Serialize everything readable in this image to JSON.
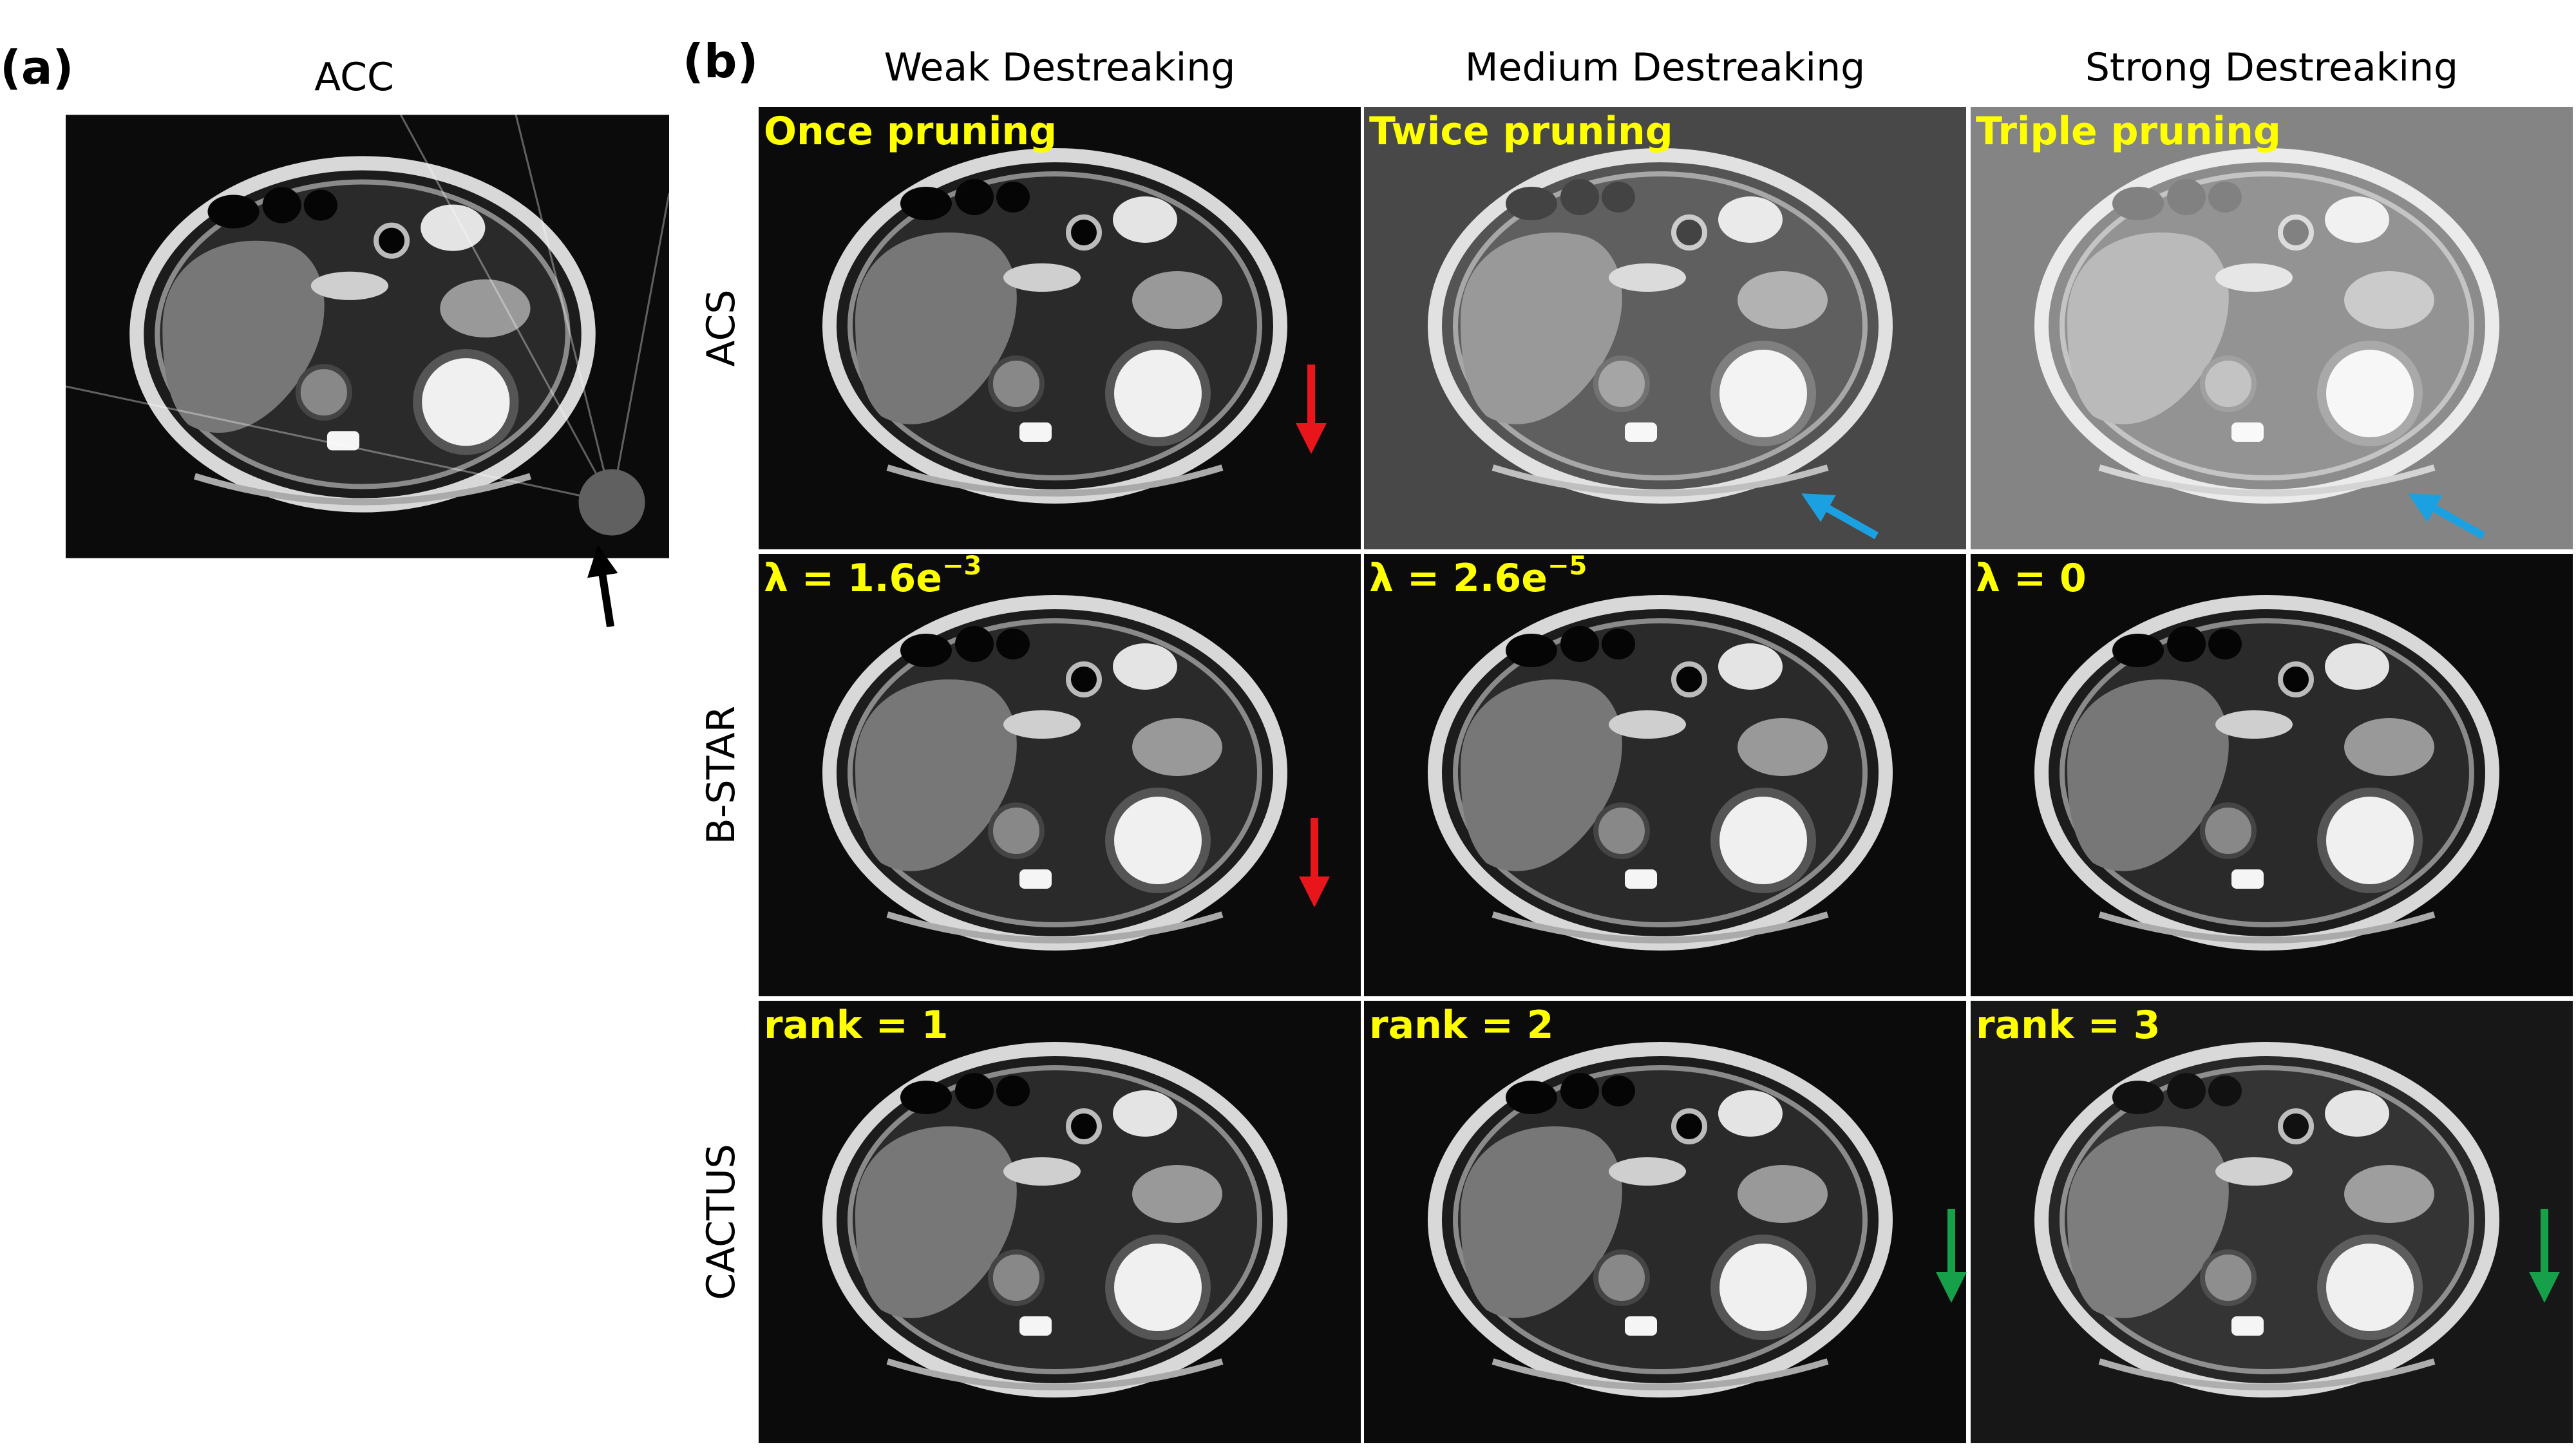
{
  "panel_a": {
    "label": "(a)",
    "title": "ACC"
  },
  "panel_b": {
    "label": "(b)",
    "columns": [
      "Weak Destreaking",
      "Medium Destreaking",
      "Strong Destreaking"
    ],
    "rows": [
      {
        "name": "ACS",
        "tiles": [
          {
            "label": "Once pruning"
          },
          {
            "label": "Twice pruning"
          },
          {
            "label": "Triple pruning"
          }
        ]
      },
      {
        "name": "B-STAR",
        "tiles": [
          {
            "label": "λ = 1.6e",
            "sup": "−3"
          },
          {
            "label": "λ = 2.6e",
            "sup": "−5"
          },
          {
            "label": "λ = 0"
          }
        ]
      },
      {
        "name": "CACTUS",
        "tiles": [
          {
            "label": "rank = 1"
          },
          {
            "label": "rank = 2"
          },
          {
            "label": "rank = 3"
          }
        ]
      }
    ]
  }
}
